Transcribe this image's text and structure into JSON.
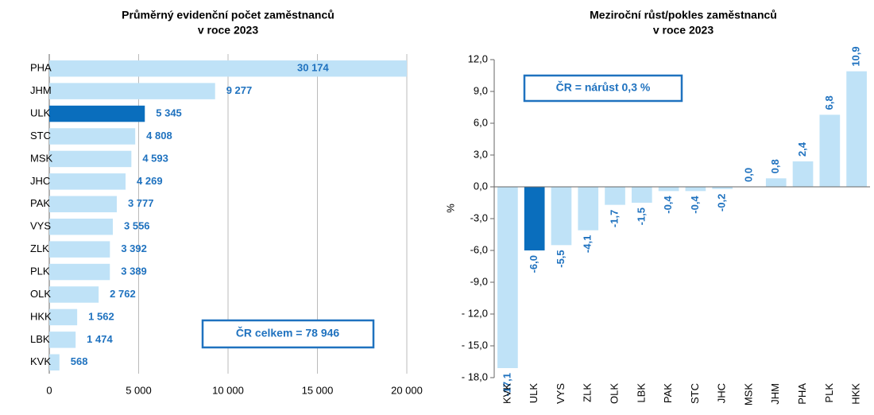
{
  "chart_data": [
    {
      "type": "hbar",
      "title": [
        "Průměrný evidenční počet zaměstnanců",
        "v roce 2023"
      ],
      "categories": [
        "PHA",
        "JHM",
        "ULK",
        "STC",
        "MSK",
        "JHC",
        "PAK",
        "VYS",
        "ZLK",
        "PLK",
        "OLK",
        "HKK",
        "LBK",
        "KVK"
      ],
      "values": [
        30174,
        9277,
        5345,
        4808,
        4593,
        4269,
        3777,
        3556,
        3392,
        3389,
        2762,
        1562,
        1474,
        568
      ],
      "value_labels": [
        "30 174",
        "9 277",
        "5 345",
        "4 808",
        "4 593",
        "4 269",
        "3 777",
        "3 556",
        "3 392",
        "3 389",
        "2 762",
        "1 562",
        "1 474",
        "568"
      ],
      "colors": [
        "#bfe2f7",
        "#bfe2f7",
        "#0a6ebd",
        "#bfe2f7",
        "#bfe2f7",
        "#bfe2f7",
        "#bfe2f7",
        "#bfe2f7",
        "#bfe2f7",
        "#bfe2f7",
        "#bfe2f7",
        "#bfe2f7",
        "#bfe2f7",
        "#bfe2f7"
      ],
      "xlim": [
        0,
        20000
      ],
      "xticks": [
        0,
        {
          "value": 5000,
          "label": "5 000"
        },
        {
          "value": 10000,
          "label": "10 000"
        },
        {
          "value": 15000,
          "label": "15 000"
        },
        {
          "value": 20000,
          "label": "20 000"
        }
      ],
      "grid": true,
      "annotation": "ČR celkem = 78 946"
    },
    {
      "type": "bar",
      "title": [
        "Meziroční růst/pokles zaměstnanců",
        "v roce 2023"
      ],
      "ylabel": "%",
      "categories": [
        "KVK",
        "ULK",
        "VYS",
        "ZLK",
        "OLK",
        "LBK",
        "PAK",
        "STC",
        "JHC",
        "MSK",
        "JHM",
        "PHA",
        "PLK",
        "HKK"
      ],
      "values": [
        -17.1,
        -6.0,
        -5.5,
        -4.1,
        -1.7,
        -1.5,
        -0.4,
        -0.4,
        -0.2,
        0.0,
        0.8,
        2.4,
        6.8,
        10.9
      ],
      "value_labels": [
        "-17,1",
        "-6,0",
        "-5,5",
        "-4,1",
        "-1,7",
        "-1,5",
        "-0,4",
        "-0,4",
        "-0,2",
        "0,0",
        "0,8",
        "2,4",
        "6,8",
        "10,9"
      ],
      "colors": [
        "#bfe2f7",
        "#0a6ebd",
        "#bfe2f7",
        "#bfe2f7",
        "#bfe2f7",
        "#bfe2f7",
        "#bfe2f7",
        "#bfe2f7",
        "#bfe2f7",
        "#bfe2f7",
        "#bfe2f7",
        "#bfe2f7",
        "#bfe2f7",
        "#bfe2f7"
      ],
      "ylim": [
        -18,
        12
      ],
      "yticks": [
        {
          "value": 12,
          "label": "12,0"
        },
        {
          "value": 9,
          "label": "9,0"
        },
        {
          "value": 6,
          "label": "6,0"
        },
        {
          "value": 3,
          "label": "3,0"
        },
        {
          "value": 0,
          "label": "0,0"
        },
        {
          "value": -3,
          "label": "-3,0"
        },
        {
          "value": -6,
          "label": "-6,0"
        },
        {
          "value": -9,
          "label": "-9,0"
        },
        {
          "value": -12,
          "label": "- 12,0"
        },
        {
          "value": -15,
          "label": "- 15,0"
        },
        {
          "value": -18,
          "label": "- 18,0"
        }
      ],
      "annotation": "ČR = nárůst 0,3 %"
    }
  ]
}
